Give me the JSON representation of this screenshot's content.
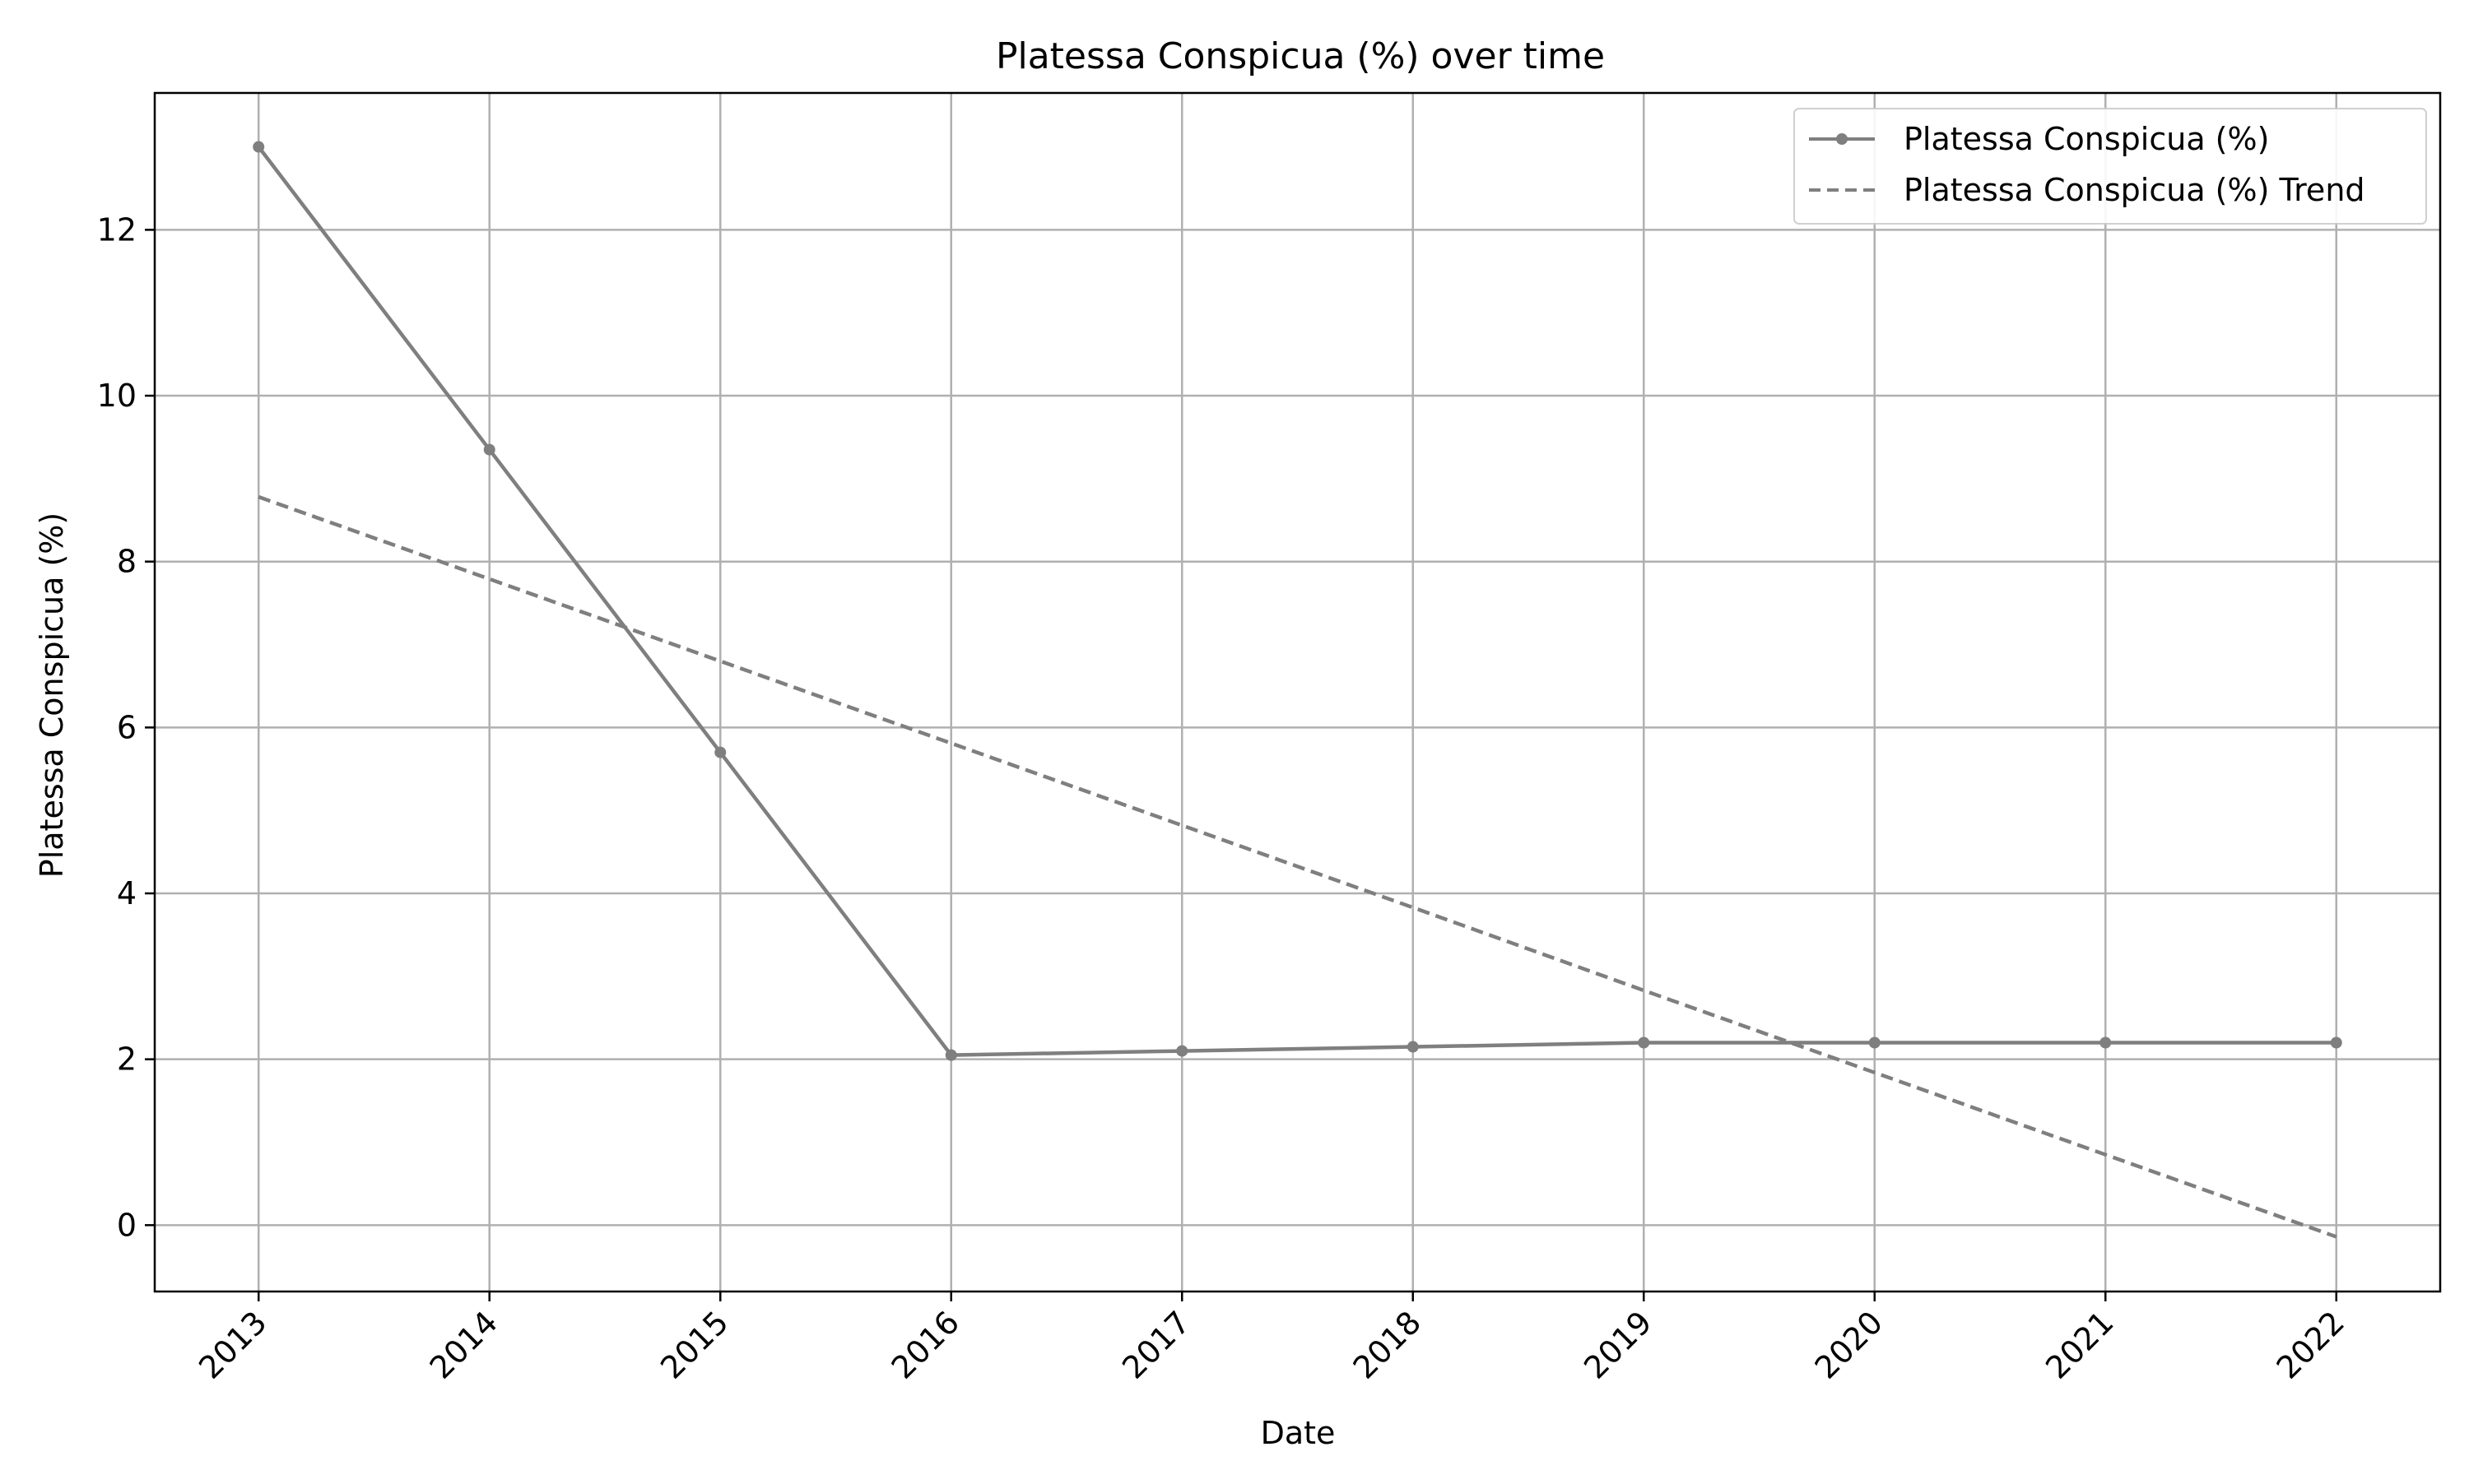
{
  "chart_data": {
    "type": "line",
    "title": "Platessa Conspicua (%) over time",
    "xlabel": "Date",
    "ylabel": "Platessa Conspicua (%)",
    "x": [
      "2013",
      "2014",
      "2015",
      "2016",
      "2017",
      "2018",
      "2019",
      "2020",
      "2021",
      "2022"
    ],
    "xlim": [
      2012.55,
      2022.45
    ],
    "ylim": [
      -0.8,
      13.65
    ],
    "yticks": [
      0,
      2,
      4,
      6,
      8,
      10,
      12
    ],
    "grid": true,
    "legend_position": "top-right",
    "series": [
      {
        "name": "Platessa Conspicua (%)",
        "style": "solid-with-markers",
        "color": "#7f7f7f",
        "values": [
          13.0,
          9.35,
          5.7,
          2.05,
          2.1,
          2.15,
          2.2,
          2.2,
          2.2,
          2.2
        ]
      },
      {
        "name": "Platessa Conspicua (%) Trend",
        "style": "dashed",
        "color": "#7f7f7f",
        "values": [
          8.78,
          7.79,
          6.8,
          5.81,
          4.82,
          3.83,
          2.83,
          1.84,
          0.85,
          -0.14
        ]
      }
    ]
  }
}
